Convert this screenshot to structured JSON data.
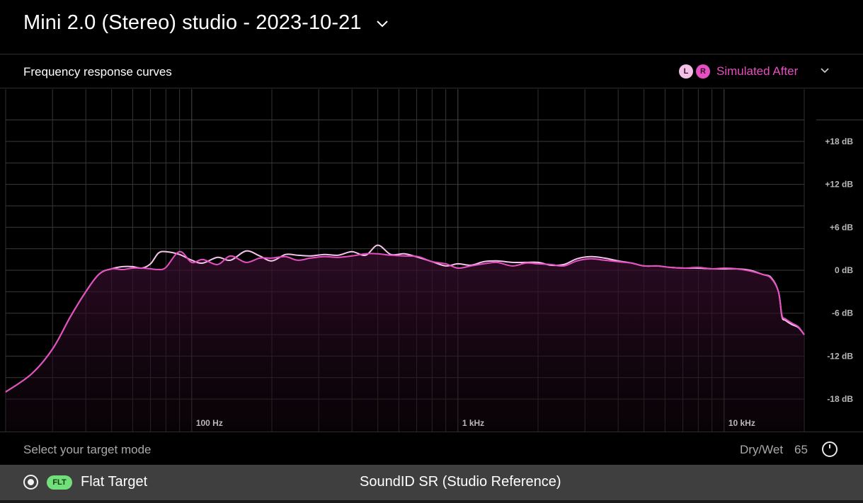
{
  "header": {
    "title": "Mini 2.0 (Stereo) studio - 2023-10-21"
  },
  "subheader": {
    "title": "Frequency response curves",
    "channels": [
      "L",
      "R"
    ],
    "view_label": "Simulated After"
  },
  "chart_data": {
    "type": "line",
    "title": "",
    "xlabel": "",
    "ylabel": "",
    "x_scale": "log",
    "xlim": [
      20,
      20000
    ],
    "ylim": [
      -24,
      24
    ],
    "grid": true,
    "x_tick_labels": [
      {
        "value": 100,
        "label": "100 Hz"
      },
      {
        "value": 1000,
        "label": "1 kHz"
      },
      {
        "value": 10000,
        "label": "10 kHz"
      }
    ],
    "y_tick_labels": [
      {
        "value": 18,
        "label": "+18 dB"
      },
      {
        "value": 12,
        "label": "+12 dB"
      },
      {
        "value": 6,
        "label": "+6 dB"
      },
      {
        "value": 0,
        "label": "0 dB"
      },
      {
        "value": -6,
        "label": "-6 dB"
      },
      {
        "value": -12,
        "label": "-12 dB"
      },
      {
        "value": -18,
        "label": "-18 dB"
      }
    ],
    "series": [
      {
        "name": "L",
        "color": "#f4c4ea",
        "x": [
          20,
          25,
          30,
          35,
          40,
          45,
          50,
          55,
          60,
          65,
          70,
          75,
          80,
          90,
          100,
          110,
          125,
          140,
          160,
          180,
          200,
          225,
          250,
          280,
          315,
          355,
          400,
          450,
          500,
          560,
          630,
          710,
          800,
          900,
          1000,
          1120,
          1250,
          1400,
          1600,
          1800,
          2000,
          2240,
          2500,
          2800,
          3150,
          3550,
          4000,
          4500,
          5000,
          5600,
          6300,
          7100,
          8000,
          9000,
          10000,
          11200,
          12500,
          14000,
          15000,
          16000,
          16500,
          17000,
          18000,
          19000,
          20000
        ],
        "y": [
          -17,
          -14.5,
          -11,
          -6.5,
          -3,
          -0.5,
          0.2,
          0.5,
          0.5,
          0.3,
          0.9,
          2.4,
          2.6,
          2.2,
          1.4,
          1.0,
          1.8,
          1.4,
          2.7,
          2.0,
          1.3,
          2.2,
          2.1,
          2.0,
          2.2,
          2.1,
          2.6,
          2.1,
          3.5,
          2.2,
          2.3,
          1.8,
          1.2,
          0.6,
          0.9,
          0.7,
          1.2,
          1.3,
          1.1,
          1.1,
          1.1,
          0.7,
          0.8,
          1.6,
          1.9,
          1.7,
          1.3,
          1.0,
          0.6,
          0.6,
          0.4,
          0.3,
          0.3,
          0.2,
          0.2,
          0.2,
          0.0,
          -0.6,
          -1.0,
          -3.0,
          -6.5,
          -7.0,
          -7.6,
          -8.0,
          -9.0
        ]
      },
      {
        "name": "R",
        "color": "#e64fc0",
        "x": [
          20,
          25,
          30,
          35,
          40,
          45,
          50,
          55,
          60,
          65,
          70,
          75,
          80,
          90,
          100,
          110,
          125,
          140,
          160,
          180,
          200,
          225,
          250,
          280,
          315,
          355,
          400,
          450,
          500,
          560,
          630,
          710,
          800,
          900,
          1000,
          1120,
          1250,
          1400,
          1600,
          1800,
          2000,
          2240,
          2500,
          2800,
          3150,
          3550,
          4000,
          4500,
          5000,
          5600,
          6300,
          7100,
          8000,
          9000,
          10000,
          11200,
          12500,
          14000,
          15000,
          16000,
          16500,
          17000,
          18000,
          19000,
          20000
        ],
        "y": [
          -17,
          -14.5,
          -11,
          -6.5,
          -3,
          -0.5,
          0.2,
          0.1,
          0.3,
          0.3,
          0.2,
          0.1,
          0.4,
          2.6,
          1.1,
          1.5,
          0.8,
          2.0,
          1.1,
          1.7,
          1.7,
          1.9,
          1.4,
          1.7,
          1.9,
          1.8,
          2.0,
          2.3,
          2.3,
          2.1,
          2.0,
          1.9,
          1.2,
          0.9,
          0.3,
          0.6,
          0.9,
          1.1,
          0.6,
          1.0,
          0.9,
          0.8,
          0.6,
          1.3,
          1.6,
          1.4,
          1.2,
          1.0,
          0.6,
          0.6,
          0.4,
          0.3,
          0.4,
          0.2,
          0.3,
          0.2,
          -0.1,
          -0.6,
          -1.1,
          -3.0,
          -6.3,
          -6.8,
          -7.4,
          -7.9,
          -9.0
        ]
      }
    ]
  },
  "mode": {
    "label": "Select your target mode",
    "drywet_label": "Dry/Wet",
    "drywet_value": "65"
  },
  "target": {
    "badge": "FLT",
    "flat_label": "Flat Target",
    "reference_label": "SoundID SR (Studio Reference)"
  },
  "colors": {
    "accent": "#e64fc0",
    "accent_light": "#f4c4ea",
    "badge_green": "#71e07a",
    "background": "#000000"
  }
}
